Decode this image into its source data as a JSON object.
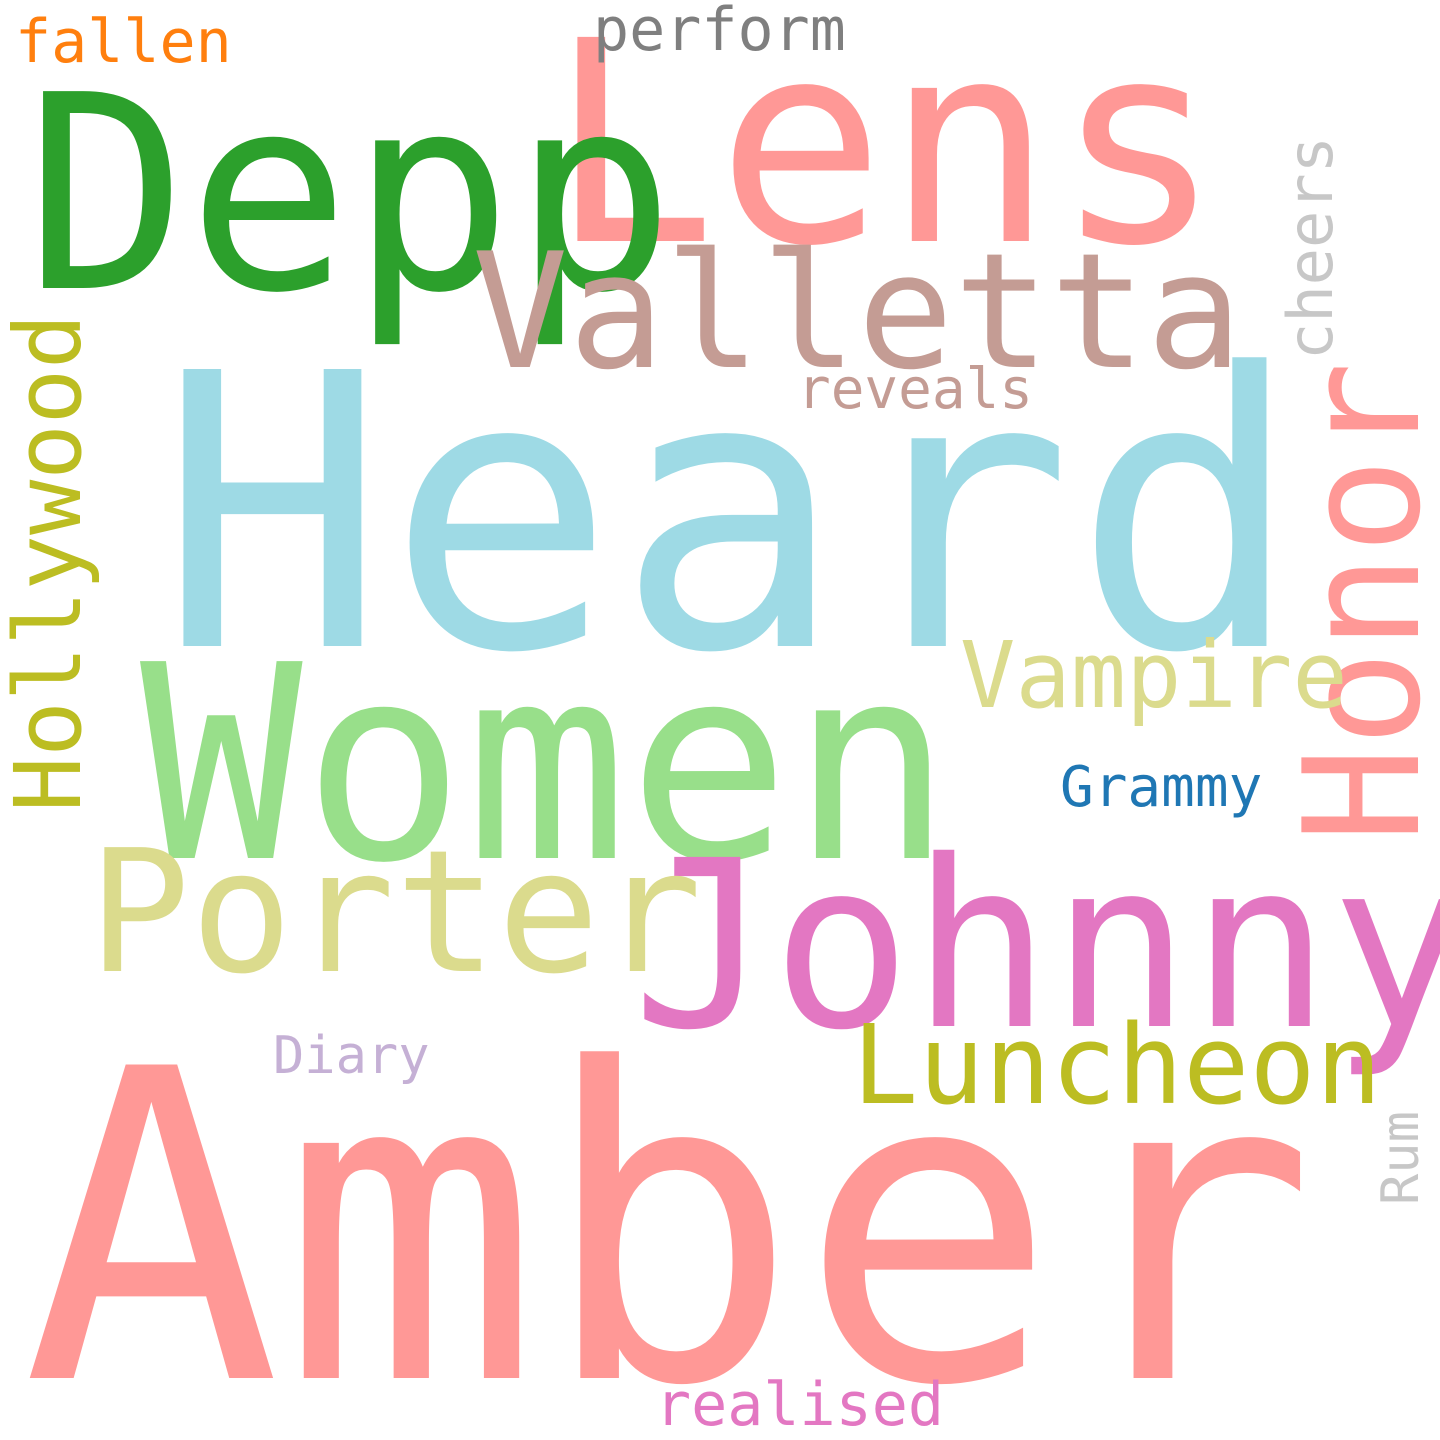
{
  "words": [
    {
      "id": "amber",
      "text": "Amber",
      "color": "#ff9896"
    },
    {
      "id": "heard",
      "text": "Heard",
      "color": "#9edae5"
    },
    {
      "id": "lens",
      "text": "Lens",
      "color": "#ff9896"
    },
    {
      "id": "depp",
      "text": "Depp",
      "color": "#2ca02c"
    },
    {
      "id": "women",
      "text": "Women",
      "color": "#98df8a"
    },
    {
      "id": "johnny",
      "text": "Johnny",
      "color": "#e377c2"
    },
    {
      "id": "valletta",
      "text": "Valletta",
      "color": "#c49c94"
    },
    {
      "id": "porter",
      "text": "Porter",
      "color": "#dbdb8d"
    },
    {
      "id": "honor",
      "text": "Honor",
      "color": "#ff9896"
    },
    {
      "id": "hollywood",
      "text": "Hollywood",
      "color": "#bcbd22"
    },
    {
      "id": "luncheon",
      "text": "Luncheon",
      "color": "#bcbd22"
    },
    {
      "id": "vampire",
      "text": "Vampire",
      "color": "#dbdb8d"
    },
    {
      "id": "cheers",
      "text": "cheers",
      "color": "#c7c7c7"
    },
    {
      "id": "perform",
      "text": "perform",
      "color": "#7f7f7f"
    },
    {
      "id": "fallen",
      "text": "fallen",
      "color": "#ff7f0e"
    },
    {
      "id": "reveals",
      "text": "reveals",
      "color": "#c49c94"
    },
    {
      "id": "grammy",
      "text": "Grammy",
      "color": "#1f77b4"
    },
    {
      "id": "diary",
      "text": "Diary",
      "color": "#c5b0d5"
    },
    {
      "id": "rum",
      "text": "Rum",
      "color": "#c7c7c7"
    },
    {
      "id": "realised",
      "text": "realised",
      "color": "#e377c2"
    }
  ]
}
